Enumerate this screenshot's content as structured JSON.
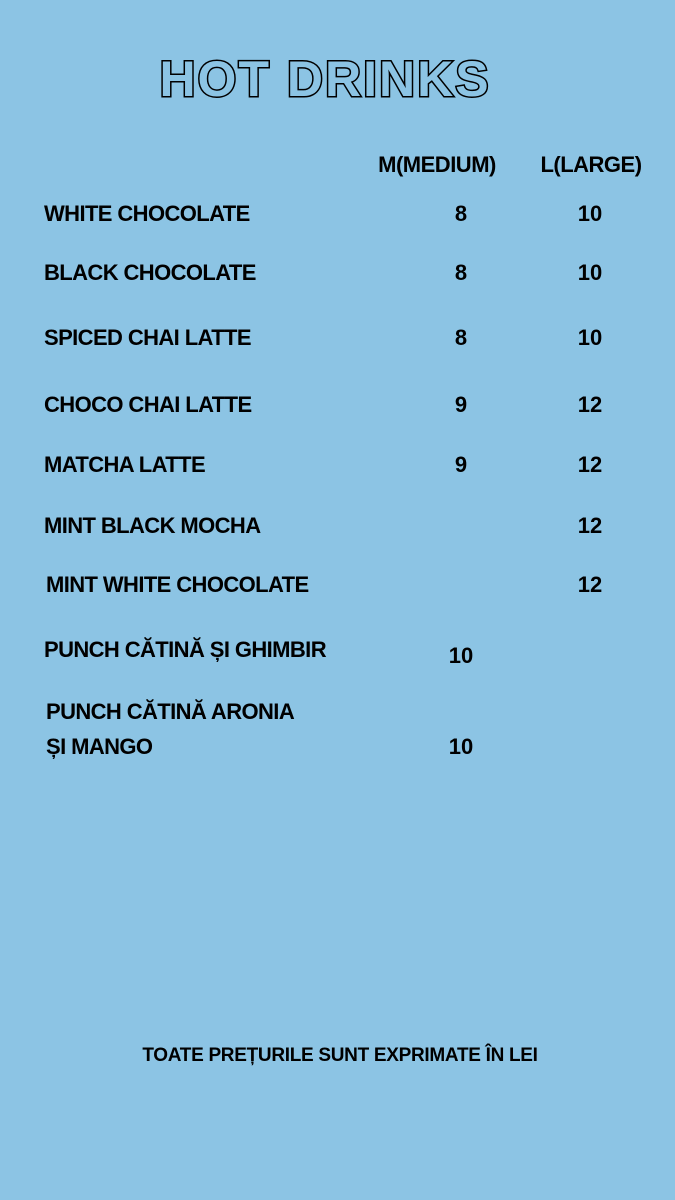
{
  "title": "HOT DRINKS",
  "columns": {
    "medium": "M(MEDIUM)",
    "large": "L(LARGE)"
  },
  "items": [
    {
      "name": "WHITE CHOCOLATE",
      "medium": "8",
      "large": "10"
    },
    {
      "name": "BLACK CHOCOLATE",
      "medium": "8",
      "large": "10"
    },
    {
      "name": "SPICED CHAI LATTE",
      "medium": "8",
      "large": "10"
    },
    {
      "name": "CHOCO CHAI LATTE",
      "medium": "9",
      "large": "12"
    },
    {
      "name": "MATCHA LATTE",
      "medium": "9",
      "large": "12"
    },
    {
      "name": "MINT BLACK MOCHA",
      "medium": "",
      "large": "12"
    },
    {
      "name": "MINT WHITE CHOCOLATE",
      "medium": "",
      "large": "12"
    },
    {
      "name": "PUNCH CĂTINĂ ȘI GHIMBIR",
      "medium": "10",
      "large": ""
    },
    {
      "name_line1": "PUNCH CĂTINĂ ARONIA",
      "name_line2": "ȘI MANGO",
      "medium": "10",
      "large": ""
    }
  ],
  "footer": "TOATE PREȚURILE SUNT EXPRIMATE ÎN LEI",
  "colors": {
    "background": "#8cc4e4",
    "text": "#000000"
  }
}
